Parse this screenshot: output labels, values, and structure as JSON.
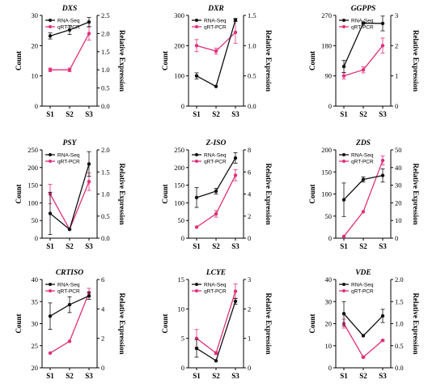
{
  "colors": {
    "rna": "#111111",
    "qrt": "#e0307a"
  },
  "chart_data": [
    {
      "type": "line",
      "title": "DXS",
      "categories": [
        "S1",
        "S2",
        "S3"
      ],
      "ylabel_left": "Count",
      "ylabel_right": "Relative Expression",
      "left_ylim": [
        0,
        30
      ],
      "left_ticks": [
        0,
        10,
        20,
        30
      ],
      "right_ylim": [
        0,
        2.5
      ],
      "right_ticks": [
        0.0,
        0.5,
        1.0,
        1.5,
        2.0,
        2.5
      ],
      "right_decimals": 1,
      "series": [
        {
          "name": "RNA-Seq",
          "axis": "left",
          "values": [
            23.2,
            25.2,
            27.8
          ],
          "errors": [
            1.0,
            1.5,
            1.5
          ]
        },
        {
          "name": "qRT-PCR",
          "axis": "right",
          "values": [
            1.0,
            1.0,
            2.0
          ],
          "errors": [
            0.05,
            0.05,
            0.18
          ]
        }
      ]
    },
    {
      "type": "line",
      "title": "DXR",
      "categories": [
        "S1",
        "S2",
        "S3"
      ],
      "ylabel_left": "Count",
      "ylabel_right": "Relative Expression",
      "left_ylim": [
        0,
        300
      ],
      "left_ticks": [
        0,
        100,
        200,
        300
      ],
      "right_ylim": [
        0,
        1.5
      ],
      "right_ticks": [
        0.0,
        0.5,
        1.0,
        1.5
      ],
      "right_decimals": 1,
      "series": [
        {
          "name": "RNA-Seq",
          "axis": "left",
          "values": [
            100,
            65,
            285
          ],
          "errors": [
            10,
            0,
            5
          ]
        },
        {
          "name": "qRT-PCR",
          "axis": "right",
          "values": [
            1.0,
            0.91,
            1.22
          ],
          "errors": [
            0.1,
            0.05,
            0.18
          ]
        }
      ]
    },
    {
      "type": "line",
      "title": "GGPPS",
      "categories": [
        "S1",
        "S2",
        "S3"
      ],
      "ylabel_left": "Count",
      "ylabel_right": "Relative Expression",
      "left_ylim": [
        0,
        270
      ],
      "left_ticks": [
        0,
        90,
        180,
        270
      ],
      "right_ylim": [
        0,
        3
      ],
      "right_ticks": [
        0,
        1,
        2,
        3
      ],
      "right_decimals": 0,
      "series": [
        {
          "name": "RNA-Seq",
          "axis": "left",
          "values": [
            118,
            247,
            246
          ],
          "errors": [
            18,
            3,
            22
          ]
        },
        {
          "name": "qRT-PCR",
          "axis": "right",
          "values": [
            1.0,
            1.2,
            2.0
          ],
          "errors": [
            0.1,
            0.1,
            0.25
          ]
        }
      ]
    },
    {
      "type": "line",
      "title": "PSY",
      "categories": [
        "S1",
        "S2",
        "S3"
      ],
      "ylabel_left": "Count",
      "ylabel_right": "Relative Expression",
      "left_ylim": [
        0,
        250
      ],
      "left_ticks": [
        0,
        50,
        100,
        150,
        200,
        250
      ],
      "right_ylim": [
        0,
        2.0
      ],
      "right_ticks": [
        0.0,
        0.5,
        1.0,
        1.5,
        2.0
      ],
      "right_decimals": 1,
      "series": [
        {
          "name": "RNA-Seq",
          "axis": "left",
          "values": [
            70,
            25,
            210
          ],
          "errors": [
            60,
            0,
            35
          ]
        },
        {
          "name": "qRT-PCR",
          "axis": "right",
          "values": [
            1.0,
            0.2,
            1.28
          ],
          "errors": [
            0.22,
            0,
            0.2
          ]
        }
      ]
    },
    {
      "type": "line",
      "title": "Z-ISO",
      "categories": [
        "S1",
        "S2",
        "S3"
      ],
      "ylabel_left": "Count",
      "ylabel_right": "Relative Expression",
      "left_ylim": [
        0,
        250
      ],
      "left_ticks": [
        0,
        50,
        100,
        150,
        200,
        250
      ],
      "right_ylim": [
        0,
        8
      ],
      "right_ticks": [
        0,
        2,
        4,
        6,
        8
      ],
      "right_decimals": 0,
      "series": [
        {
          "name": "RNA-Seq",
          "axis": "left",
          "values": [
            115,
            133,
            227
          ],
          "errors": [
            28,
            8,
            15
          ]
        },
        {
          "name": "qRT-PCR",
          "axis": "right",
          "values": [
            1.0,
            2.2,
            5.7
          ],
          "errors": [
            0,
            0.3,
            0.5
          ]
        }
      ]
    },
    {
      "type": "line",
      "title": "ZDS",
      "categories": [
        "S1",
        "S2",
        "S3"
      ],
      "ylabel_left": "Count",
      "ylabel_right": "Relative Expression",
      "left_ylim": [
        0,
        200
      ],
      "left_ticks": [
        0,
        50,
        100,
        150,
        200
      ],
      "right_ylim": [
        0,
        50
      ],
      "right_ticks": [
        0,
        10,
        20,
        30,
        40,
        50
      ],
      "right_decimals": 0,
      "series": [
        {
          "name": "RNA-Seq",
          "axis": "left",
          "values": [
            87,
            133,
            142
          ],
          "errors": [
            38,
            6,
            15
          ]
        },
        {
          "name": "qRT-PCR",
          "axis": "right",
          "values": [
            1.0,
            15,
            44
          ],
          "errors": [
            0,
            0,
            2.5
          ]
        }
      ]
    },
    {
      "type": "line",
      "title": "CRTISO",
      "categories": [
        "S1",
        "S2",
        "S3"
      ],
      "ylabel_left": "Count",
      "ylabel_right": "Relative Expression",
      "left_ylim": [
        20,
        40
      ],
      "left_ticks": [
        20,
        25,
        30,
        35,
        40
      ],
      "right_ylim": [
        0,
        6
      ],
      "right_ticks": [
        0,
        2,
        4,
        6
      ],
      "right_decimals": 0,
      "series": [
        {
          "name": "RNA-Seq",
          "axis": "left",
          "values": [
            31.7,
            34.3,
            36.3
          ],
          "errors": [
            3,
            1.8,
            0.8
          ]
        },
        {
          "name": "qRT-PCR",
          "axis": "right",
          "values": [
            1.0,
            1.8,
            5.1
          ],
          "errors": [
            0,
            0,
            0.3
          ]
        }
      ]
    },
    {
      "type": "line",
      "title": "LCYE",
      "categories": [
        "S1",
        "S2",
        "S3"
      ],
      "ylabel_left": "Count",
      "ylabel_right": "Relative Expression",
      "left_ylim": [
        0,
        15
      ],
      "left_ticks": [
        0,
        5,
        10,
        15
      ],
      "right_ylim": [
        0,
        3
      ],
      "right_ticks": [
        0,
        1,
        2,
        3
      ],
      "right_decimals": 0,
      "series": [
        {
          "name": "RNA-Seq",
          "axis": "left",
          "values": [
            3.3,
            1.2,
            11.3
          ],
          "errors": [
            1.5,
            0,
            0.5
          ]
        },
        {
          "name": "qRT-PCR",
          "axis": "right",
          "values": [
            1.0,
            0.5,
            2.6
          ],
          "errors": [
            0.3,
            0.05,
            0.25
          ]
        }
      ]
    },
    {
      "type": "line",
      "title": "VDE",
      "categories": [
        "S1",
        "S2",
        "S3"
      ],
      "ylabel_left": "Count",
      "ylabel_right": "Relative Expression",
      "left_ylim": [
        0,
        40
      ],
      "left_ticks": [
        0,
        10,
        20,
        30,
        40
      ],
      "right_ylim": [
        0,
        2.0
      ],
      "right_ticks": [
        0.0,
        0.5,
        1.0,
        1.5,
        2.0
      ],
      "right_decimals": 1,
      "series": [
        {
          "name": "RNA-Seq",
          "axis": "left",
          "values": [
            24.5,
            14.5,
            23.5
          ],
          "errors": [
            5.5,
            0,
            3
          ]
        },
        {
          "name": "qRT-PCR",
          "axis": "right",
          "values": [
            1.0,
            0.24,
            0.62
          ],
          "errors": [
            0.1,
            0.02,
            0.02
          ]
        }
      ]
    }
  ]
}
